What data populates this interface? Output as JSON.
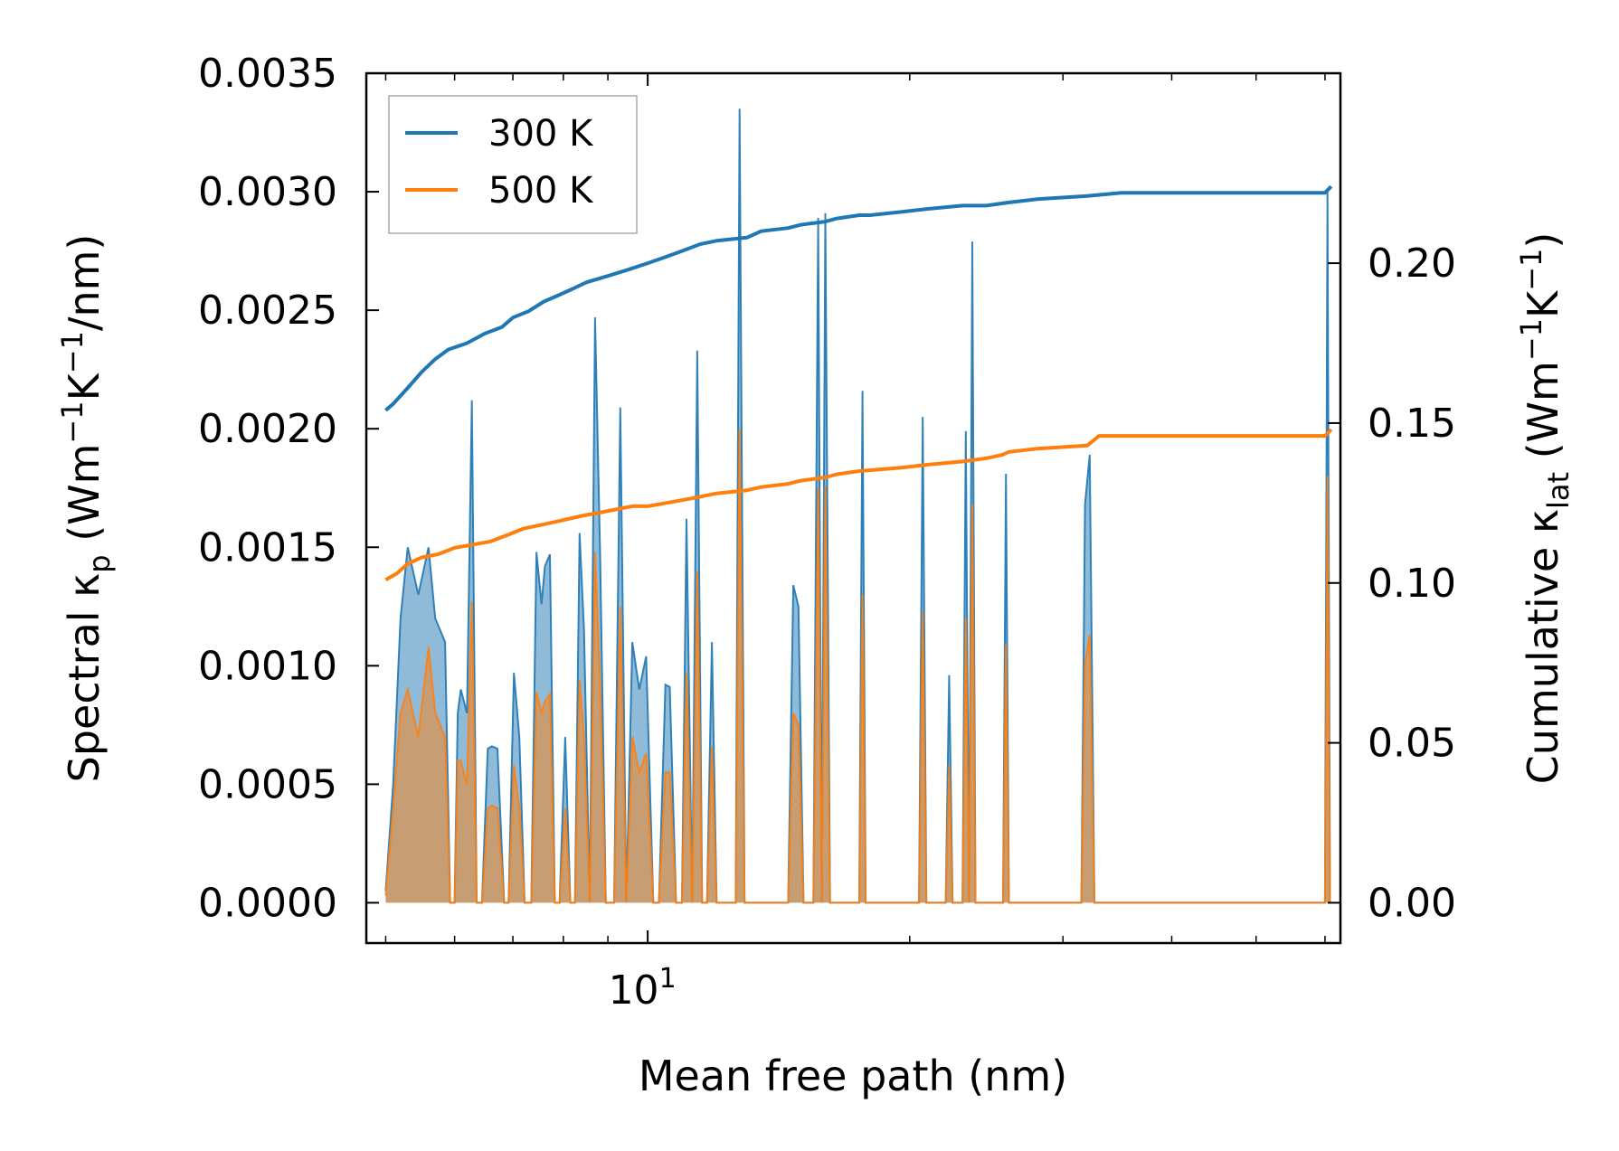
{
  "chart_data": {
    "type": "line",
    "xscale": "log",
    "xlabel": "Mean free path (nm)",
    "xlim": [
      4.75,
      62.5
    ],
    "xticks": [
      {
        "value": 10,
        "label": "10",
        "sup": "1"
      }
    ],
    "left_axis": {
      "label_main": "Spectral κ",
      "label_sub": "p",
      "label_tail": " (Wm",
      "label_sup1": "−1",
      "label_mid": "K",
      "label_sup2": "−1",
      "label_end": "/nm)",
      "ylim": [
        -0.00017,
        0.0035
      ],
      "ticks": [
        "0.0000",
        "0.0005",
        "0.0010",
        "0.0015",
        "0.0020",
        "0.0025",
        "0.0030",
        "0.0035"
      ],
      "tick_values": [
        0,
        0.0005,
        0.001,
        0.0015,
        0.002,
        0.0025,
        0.003,
        0.0035
      ]
    },
    "right_axis": {
      "label_main": "Cumulative κ",
      "label_sub": "lat",
      "label_tail": " (Wm",
      "label_sup1": "−1",
      "label_mid": "K",
      "label_sup2": "−1",
      "label_end": ")",
      "ylim": [
        -0.0126,
        0.2594
      ],
      "ticks": [
        "0.00",
        "0.05",
        "0.10",
        "0.15",
        "0.20"
      ],
      "tick_values": [
        0,
        0.05,
        0.1,
        0.15,
        0.2
      ]
    },
    "legend": {
      "location": "upper-left",
      "entries": [
        "300 K",
        "500 K"
      ]
    },
    "series": [
      {
        "name": "300 K",
        "color": "#1f77b4",
        "cumulative": {
          "x": [
            5.0,
            5.1,
            5.3,
            5.5,
            5.7,
            5.9,
            6.2,
            6.5,
            6.8,
            7.0,
            7.3,
            7.6,
            7.9,
            8.2,
            8.5,
            9.0,
            9.5,
            10.0,
            10.5,
            11.0,
            11.5,
            12.0,
            13.0,
            13.5,
            14.5,
            15.0,
            16.0,
            16.5,
            17.5,
            18.0,
            19.5,
            21.0,
            23.0,
            24.5,
            26.0,
            28.0,
            32.0,
            35.0,
            60.0,
            61.0
          ],
          "y": [
            0.154,
            0.156,
            0.161,
            0.166,
            0.17,
            0.173,
            0.175,
            0.178,
            0.18,
            0.183,
            0.185,
            0.188,
            0.19,
            0.192,
            0.194,
            0.196,
            0.198,
            0.2,
            0.202,
            0.204,
            0.206,
            0.207,
            0.208,
            0.21,
            0.211,
            0.212,
            0.213,
            0.214,
            0.215,
            0.215,
            0.216,
            0.217,
            0.218,
            0.218,
            0.219,
            0.22,
            0.221,
            0.222,
            0.222,
            0.224
          ]
        },
        "spectral": {
          "x": [
            5.0,
            5.1,
            5.2,
            5.3,
            5.45,
            5.6,
            5.7,
            5.85,
            5.93,
            6.0,
            6.05,
            6.1,
            6.2,
            6.28,
            6.36,
            6.45,
            6.55,
            6.62,
            6.72,
            6.84,
            6.92,
            7.02,
            7.12,
            7.22,
            7.35,
            7.45,
            7.55,
            7.62,
            7.72,
            7.82,
            7.92,
            8.04,
            8.15,
            8.25,
            8.35,
            8.45,
            8.58,
            8.7,
            8.82,
            8.95,
            9.15,
            9.3,
            9.45,
            9.6,
            9.78,
            9.96,
            10.15,
            10.3,
            10.48,
            10.6,
            10.78,
            10.95,
            11.08,
            11.25,
            11.4,
            11.55,
            11.7,
            11.85,
            12.0,
            12.2,
            12.45,
            12.62,
            12.75,
            12.92,
            13.1,
            13.3,
            13.5,
            14.5,
            14.7,
            14.9,
            15.1,
            15.25,
            15.5,
            15.7,
            15.85,
            16.0,
            16.2,
            17.5,
            17.65,
            17.8,
            18.0,
            20.5,
            20.7,
            20.9,
            21.1,
            22.0,
            22.2,
            22.4,
            22.6,
            23.0,
            23.2,
            23.4,
            23.6,
            23.8,
            24.0,
            25.6,
            25.8,
            26.0,
            26.2,
            31.5,
            31.8,
            32.2,
            32.6,
            33.0,
            60.0,
            60.4,
            60.8,
            61.0
          ],
          "y": [
            5e-05,
            0.0005,
            0.0012,
            0.0015,
            0.0013,
            0.0015,
            0.0012,
            0.0011,
            0.0,
            0.0,
            0.0008,
            0.0009,
            0.0008,
            0.00212,
            0.0,
            0.0,
            0.00065,
            0.00066,
            0.00065,
            0.0,
            0.0,
            0.00097,
            0.0007,
            0.0,
            0.0,
            0.00148,
            0.00126,
            0.00142,
            0.00147,
            0.0,
            0.0,
            0.0007,
            0.0,
            0.0,
            0.00156,
            0.00115,
            0.0,
            0.00247,
            0.00145,
            0.0,
            0.0,
            0.00209,
            0.0,
            0.0011,
            0.0009,
            0.00104,
            0.0,
            0.0,
            0.00092,
            0.00091,
            0.0,
            0.0,
            0.00162,
            0.0,
            0.00233,
            0.0,
            0.0,
            0.0011,
            0.0,
            0.0,
            0.0,
            0.0,
            0.00335,
            0.0,
            0.0,
            0.0,
            0.0,
            0.0,
            0.00134,
            0.00125,
            0.0,
            0.0,
            0.0,
            0.00289,
            0.0,
            0.00291,
            0.0,
            0.0,
            0.00216,
            0.0,
            0.0,
            0.0,
            0.00205,
            0.0,
            0.0,
            0.0,
            0.00096,
            0.0,
            0.0,
            0.0,
            0.00199,
            0.0,
            0.00279,
            0.0,
            0.0,
            0.0,
            0.00181,
            0.0,
            0.0,
            0.0,
            0.00168,
            0.00189,
            0.0,
            0.0,
            0.0,
            0.003,
            0.0,
            0.0
          ]
        }
      },
      {
        "name": "500 K",
        "color": "#ff7f0e",
        "cumulative": {
          "x": [
            5.0,
            5.15,
            5.3,
            5.5,
            5.75,
            6.0,
            6.3,
            6.6,
            6.9,
            7.2,
            7.5,
            7.8,
            8.1,
            8.4,
            8.8,
            9.2,
            9.6,
            10.0,
            10.5,
            11.0,
            11.5,
            12.0,
            13.0,
            13.5,
            14.5,
            15.0,
            16.0,
            16.5,
            17.5,
            19.5,
            21.0,
            23.0,
            24.5,
            25.5,
            26.0,
            28.0,
            32.0,
            33.0,
            60.0,
            61.0
          ],
          "y": [
            0.101,
            0.103,
            0.106,
            0.108,
            0.109,
            0.111,
            0.112,
            0.113,
            0.115,
            0.117,
            0.118,
            0.119,
            0.12,
            0.121,
            0.122,
            0.123,
            0.124,
            0.124,
            0.125,
            0.126,
            0.127,
            0.128,
            0.129,
            0.13,
            0.131,
            0.132,
            0.133,
            0.134,
            0.135,
            0.136,
            0.137,
            0.138,
            0.139,
            0.14,
            0.141,
            0.142,
            0.143,
            0.146,
            0.146,
            0.148
          ]
        },
        "spectral": {
          "x": [
            5.0,
            5.1,
            5.2,
            5.3,
            5.45,
            5.6,
            5.7,
            5.85,
            5.93,
            6.0,
            6.05,
            6.1,
            6.2,
            6.28,
            6.36,
            6.45,
            6.55,
            6.62,
            6.72,
            6.84,
            6.92,
            7.02,
            7.12,
            7.22,
            7.35,
            7.45,
            7.55,
            7.62,
            7.72,
            7.82,
            7.92,
            8.04,
            8.15,
            8.25,
            8.35,
            8.45,
            8.58,
            8.7,
            8.82,
            8.95,
            9.15,
            9.3,
            9.45,
            9.6,
            9.78,
            9.96,
            10.15,
            10.3,
            10.48,
            10.6,
            10.78,
            10.95,
            11.08,
            11.25,
            11.4,
            11.55,
            11.7,
            11.85,
            12.0,
            12.2,
            12.45,
            12.62,
            12.75,
            12.92,
            13.1,
            13.3,
            13.5,
            14.5,
            14.7,
            14.9,
            15.1,
            15.25,
            15.5,
            15.7,
            15.85,
            16.0,
            16.2,
            17.5,
            17.65,
            17.8,
            18.0,
            20.5,
            20.7,
            20.9,
            21.1,
            22.0,
            22.2,
            22.4,
            22.6,
            23.0,
            23.2,
            23.4,
            23.6,
            23.8,
            24.0,
            25.6,
            25.8,
            26.0,
            26.2,
            31.5,
            31.8,
            32.2,
            32.6,
            33.0,
            60.0,
            60.4,
            60.8,
            61.0
          ],
          "y": [
            3e-05,
            0.0004,
            0.0008,
            0.0009,
            0.0007,
            0.00108,
            0.0008,
            0.0007,
            0.0,
            0.0,
            0.0006,
            0.0006,
            0.0005,
            0.00127,
            0.0,
            0.0,
            0.0004,
            0.00041,
            0.0004,
            0.0,
            0.0,
            0.00058,
            0.0004,
            0.0,
            0.0,
            0.00089,
            0.0008,
            0.00085,
            0.00088,
            0.0,
            0.0,
            0.0004,
            0.0,
            0.0,
            0.00094,
            0.0007,
            0.0,
            0.00148,
            0.0009,
            0.0,
            0.0,
            0.00125,
            0.0,
            0.0007,
            0.00055,
            0.00063,
            0.0,
            0.0,
            0.00055,
            0.00055,
            0.0,
            0.0,
            0.00097,
            0.0,
            0.0014,
            0.0,
            0.0,
            0.00066,
            0.0,
            0.0,
            0.0,
            0.0,
            0.002,
            0.0,
            0.0,
            0.0,
            0.0,
            0.0,
            0.0008,
            0.00075,
            0.0,
            0.0,
            0.0,
            0.00175,
            0.0,
            0.00176,
            0.0,
            0.0,
            0.0013,
            0.0,
            0.0,
            0.0,
            0.00123,
            0.0,
            0.0,
            0.0,
            0.00058,
            0.0,
            0.0,
            0.0,
            0.0012,
            0.0,
            0.00168,
            0.0,
            0.0,
            0.0,
            0.00109,
            0.0,
            0.0,
            0.0,
            0.00101,
            0.00113,
            0.0,
            0.0,
            0.0,
            0.0018,
            0.0,
            0.0
          ]
        }
      }
    ]
  }
}
